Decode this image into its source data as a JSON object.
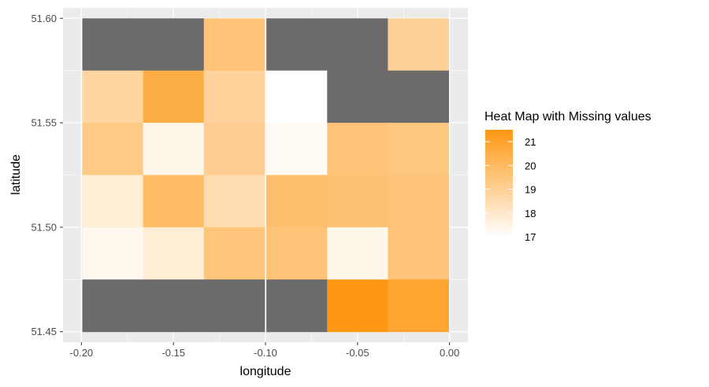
{
  "chart_data": {
    "type": "heatmap",
    "title": "",
    "xlabel": "longitude",
    "ylabel": "latitude",
    "x": [
      -0.183,
      -0.15,
      -0.117,
      -0.083,
      -0.05,
      -0.017
    ],
    "y": [
      51.6,
      51.55,
      51.525,
      51.5,
      51.475,
      51.45
    ],
    "y_bands": [
      [
        51.575,
        51.6
      ],
      [
        51.55,
        51.575
      ],
      [
        51.525,
        51.55
      ],
      [
        51.5,
        51.525
      ],
      [
        51.475,
        51.5
      ],
      [
        51.45,
        51.475
      ]
    ],
    "x_ticks": [
      -0.2,
      -0.15,
      -0.1,
      -0.05,
      0.0
    ],
    "x_tick_labels": [
      "-0.20",
      "-0.15",
      "-0.10",
      "-0.05",
      "0.00"
    ],
    "y_ticks": [
      51.45,
      51.5,
      51.55,
      51.6
    ],
    "y_tick_labels": [
      "51.45",
      "51.50",
      "51.55",
      "51.60"
    ],
    "xlim": [
      -0.21,
      0.01
    ],
    "ylim": [
      51.445,
      51.605
    ],
    "values": [
      [
        null,
        null,
        19.6,
        null,
        null,
        19.0
      ],
      [
        18.8,
        20.5,
        18.9,
        17.0,
        null,
        null
      ],
      [
        19.3,
        17.4,
        19.1,
        17.2,
        19.6,
        19.4
      ],
      [
        17.8,
        19.9,
        18.5,
        19.8,
        19.7,
        19.6
      ],
      [
        17.3,
        17.8,
        19.5,
        19.6,
        17.4,
        19.6
      ],
      [
        null,
        null,
        null,
        null,
        21.5,
        20.9
      ]
    ],
    "color_range": [
      17,
      21.5
    ],
    "low_color": "#ffffff",
    "high_color": "#fe9712",
    "na_color": "#6b6b6b",
    "panel_background": "#ebebeb",
    "grid_color": "#ffffff",
    "grid": true,
    "legend": {
      "title": "Heat Map with Missing values",
      "position": "right",
      "breaks": [
        17,
        18,
        19,
        20,
        21
      ],
      "labels": [
        "17",
        "18",
        "19",
        "20",
        "21"
      ]
    }
  }
}
